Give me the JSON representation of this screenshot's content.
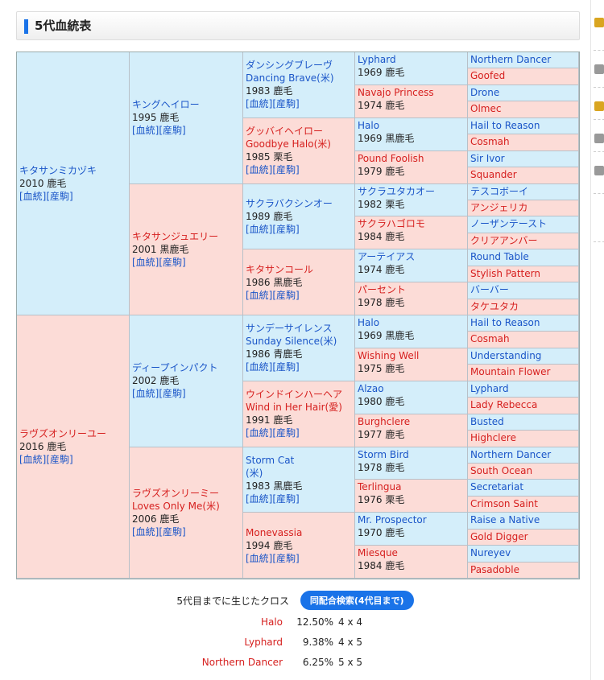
{
  "section": {
    "title": "5代血統表"
  },
  "cells": [
    {
      "name": "キタサンミカヅキ",
      "info": [
        "2010 鹿毛"
      ],
      "sex": "m",
      "links": true
    },
    {
      "name": "キングヘイロー",
      "info": [
        "1995 鹿毛"
      ],
      "sex": "m",
      "links": true
    },
    {
      "name": "ダンシングブレーヴ",
      "sub": "Dancing Brave(米)",
      "info": [
        "1983 鹿毛"
      ],
      "sex": "m",
      "links": true
    },
    {
      "name": "Lyphard",
      "info": [
        "1969 鹿毛"
      ],
      "sex": "m"
    },
    {
      "name": "Northern Dancer",
      "sex": "m"
    },
    {
      "name": "Goofed",
      "sex": "f"
    },
    {
      "name": "Navajo Princess",
      "info": [
        "1974 鹿毛"
      ],
      "sex": "f"
    },
    {
      "name": "Drone",
      "sex": "m"
    },
    {
      "name": "Olmec",
      "sex": "f"
    },
    {
      "name": "グッバイヘイロー",
      "sub": "Goodbye Halo(米)",
      "info": [
        "1985 栗毛"
      ],
      "sex": "f",
      "links": true
    },
    {
      "name": "Halo",
      "info": [
        "1969 黒鹿毛"
      ],
      "sex": "m"
    },
    {
      "name": "Hail to Reason",
      "sex": "m"
    },
    {
      "name": "Cosmah",
      "sex": "f"
    },
    {
      "name": "Pound Foolish",
      "info": [
        "1979 鹿毛"
      ],
      "sex": "f"
    },
    {
      "name": "Sir Ivor",
      "sex": "m"
    },
    {
      "name": "Squander",
      "sex": "f"
    },
    {
      "name": "キタサンジュエリー",
      "info": [
        "2001 黒鹿毛"
      ],
      "sex": "f",
      "links": true
    },
    {
      "name": "サクラバクシンオー",
      "info": [
        "1989 鹿毛"
      ],
      "sex": "m",
      "links": true
    },
    {
      "name": "サクラユタカオー",
      "info": [
        "1982 栗毛"
      ],
      "sex": "m"
    },
    {
      "name": "テスコボーイ",
      "sex": "m"
    },
    {
      "name": "アンジェリカ",
      "sex": "f"
    },
    {
      "name": "サクラハゴロモ",
      "info": [
        "1984 鹿毛"
      ],
      "sex": "f"
    },
    {
      "name": "ノーザンテースト",
      "sex": "m"
    },
    {
      "name": "クリアアンバー",
      "sex": "f"
    },
    {
      "name": "キタサンコール",
      "info": [
        "1986 黒鹿毛"
      ],
      "sex": "f",
      "links": true
    },
    {
      "name": "アーテイアス",
      "info": [
        "1974 鹿毛"
      ],
      "sex": "m"
    },
    {
      "name": "Round Table",
      "sex": "m"
    },
    {
      "name": "Stylish Pattern",
      "sex": "f"
    },
    {
      "name": "パーセント",
      "info": [
        "1978 鹿毛"
      ],
      "sex": "f"
    },
    {
      "name": "バーバー",
      "sex": "m"
    },
    {
      "name": "タケユタカ",
      "sex": "f"
    },
    {
      "name": "ラヴズオンリーユー",
      "info": [
        "2016 鹿毛"
      ],
      "sex": "f",
      "links": true
    },
    {
      "name": "ディープインパクト",
      "info": [
        "2002 鹿毛"
      ],
      "sex": "m",
      "links": true
    },
    {
      "name": "サンデーサイレンス",
      "sub": "Sunday Silence(米)",
      "info": [
        "1986 青鹿毛"
      ],
      "sex": "m",
      "links": true
    },
    {
      "name": "Halo",
      "info": [
        "1969 黒鹿毛"
      ],
      "sex": "m"
    },
    {
      "name": "Hail to Reason",
      "sex": "m"
    },
    {
      "name": "Cosmah",
      "sex": "f"
    },
    {
      "name": "Wishing Well",
      "info": [
        "1975 鹿毛"
      ],
      "sex": "f"
    },
    {
      "name": "Understanding",
      "sex": "m"
    },
    {
      "name": "Mountain Flower",
      "sex": "f"
    },
    {
      "name": "ウインドインハーヘア",
      "sub": "Wind in Her Hair(愛)",
      "info": [
        "1991 鹿毛"
      ],
      "sex": "f",
      "links": true
    },
    {
      "name": "Alzao",
      "info": [
        "1980 鹿毛"
      ],
      "sex": "m"
    },
    {
      "name": "Lyphard",
      "sex": "m"
    },
    {
      "name": "Lady Rebecca",
      "sex": "f"
    },
    {
      "name": "Burghclere",
      "info": [
        "1977 鹿毛"
      ],
      "sex": "f"
    },
    {
      "name": "Busted",
      "sex": "m"
    },
    {
      "name": "Highclere",
      "sex": "f"
    },
    {
      "name": "ラヴズオンリーミー",
      "sub": "Loves Only Me(米)",
      "info": [
        "2006 鹿毛"
      ],
      "sex": "f",
      "links": true
    },
    {
      "name": "Storm Cat",
      "sub": "(米)",
      "info": [
        "1983 黒鹿毛"
      ],
      "sex": "m",
      "links": true
    },
    {
      "name": "Storm Bird",
      "info": [
        "1978 鹿毛"
      ],
      "sex": "m"
    },
    {
      "name": "Northern Dancer",
      "sex": "m"
    },
    {
      "name": "South Ocean",
      "sex": "f"
    },
    {
      "name": "Terlingua",
      "info": [
        "1976 栗毛"
      ],
      "sex": "f"
    },
    {
      "name": "Secretariat",
      "sex": "m"
    },
    {
      "name": "Crimson Saint",
      "sex": "f"
    },
    {
      "name": "Monevassia",
      "info": [
        "1994 鹿毛"
      ],
      "sex": "f",
      "links": true
    },
    {
      "name": "Mr. Prospector",
      "info": [
        "1970 鹿毛"
      ],
      "sex": "m"
    },
    {
      "name": "Raise a Native",
      "sex": "m"
    },
    {
      "name": "Gold Digger",
      "sex": "f"
    },
    {
      "name": "Miesque",
      "info": [
        "1984 鹿毛"
      ],
      "sex": "f"
    },
    {
      "name": "Nureyev",
      "sex": "m"
    },
    {
      "name": "Pasadoble",
      "sex": "f"
    }
  ],
  "links": {
    "blood": "[血統]",
    "offspring": "[産駒]"
  },
  "cross": {
    "label": "5代目までに生じたクロス",
    "button": "同配合検索(4代目まで)",
    "rows": [
      {
        "name": "Halo",
        "pct": "12.50%",
        "gen": "4 x 4"
      },
      {
        "name": "Lyphard",
        "pct": "9.38%",
        "gen": "4 x 5"
      },
      {
        "name": "Northern Dancer",
        "pct": "6.25%",
        "gen": "5 x 5"
      }
    ]
  },
  "colors": {
    "male_bg": "#d4eefa",
    "female_bg": "#fcdcd7",
    "male_text": "#1a55c8",
    "female_text": "#d6201f",
    "accent": "#1a73e8"
  },
  "sidebar_icons": [
    "folder-icon",
    "lock-icon",
    "folder-icon",
    "lock-icon",
    "lock-icon"
  ]
}
